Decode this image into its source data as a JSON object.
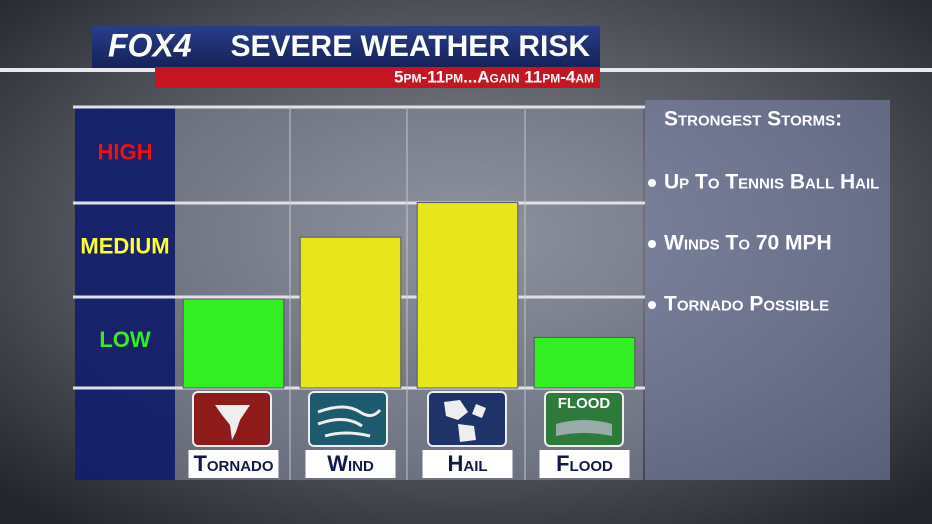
{
  "chart_data": {
    "type": "bar",
    "logo": "FOX4",
    "title": "SEVERE WEATHER RISK",
    "subtitle": "5pm-11pm...Again 11pm-4am",
    "categories": [
      "Tornado",
      "Wind",
      "Hail",
      "Flood"
    ],
    "values": [
      0.95,
      1.61,
      1.98,
      0.54
    ],
    "colors": [
      "#33ee22",
      "#e6e61a",
      "#e6e61a",
      "#33ee22"
    ],
    "ylim": [
      0,
      3
    ],
    "yticks": [
      {
        "value": 0.5,
        "label": "LOW"
      },
      {
        "value": 1.5,
        "label": "MEDIUM"
      },
      {
        "value": 2.5,
        "label": "HIGH"
      }
    ],
    "ytick_colors": [
      "#33ee22",
      "#ffff33",
      "#ee1111"
    ],
    "flood_icon_text": "FLOOD",
    "panel": {
      "heading": "Strongest Storms:",
      "items": [
        "Up To Tennis Ball Hail",
        "Winds To 70 MPH",
        "Tornado Possible"
      ]
    }
  }
}
